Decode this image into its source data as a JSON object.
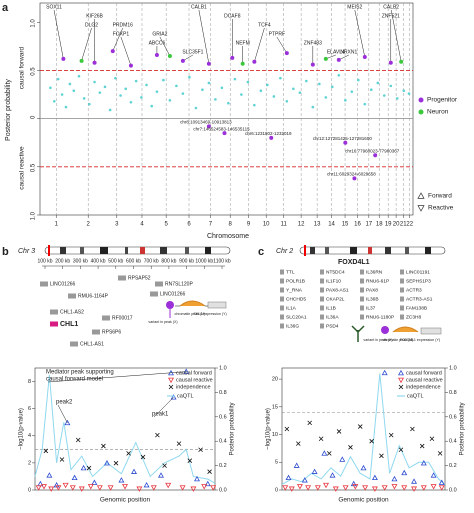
{
  "figure_a": {
    "panel_label": "a",
    "y_label": "Posterior probability",
    "forward_label": "causal forward",
    "reactive_label": "causal reactive",
    "x_label": "Chromosome",
    "xlim": [
      0,
      2871
    ],
    "ylim": [
      -1,
      1.2
    ],
    "yticks": [
      {
        "value": 1,
        "label": "1.0"
      },
      {
        "value": 0.5,
        "label": "0.5"
      },
      0,
      {
        "value": -0.5,
        "label": "0.5"
      },
      {
        "value": -1,
        "label": "1.0"
      }
    ],
    "xticks": [
      {
        "value": 125,
        "label": "1"
      },
      {
        "value": 371,
        "label": "2"
      },
      {
        "value": 591,
        "label": "3"
      },
      {
        "value": 785,
        "label": "4"
      },
      {
        "value": 971,
        "label": "5"
      },
      {
        "value": 1147,
        "label": "6"
      },
      {
        "value": 1312,
        "label": "7"
      },
      {
        "value": 1464,
        "label": "8"
      },
      {
        "value": 1605,
        "label": "9"
      },
      {
        "value": 1741,
        "label": "10"
      },
      {
        "value": 1876,
        "label": "11"
      },
      {
        "value": 2010,
        "label": "12"
      },
      {
        "value": 2133,
        "label": "13"
      },
      {
        "value": 2244,
        "label": "14"
      },
      {
        "value": 2348,
        "label": "15"
      },
      {
        "value": 2444,
        "label": "16"
      },
      {
        "value": 2531,
        "label": "17"
      },
      {
        "value": 2611,
        "label": "18"
      },
      {
        "value": 2680,
        "label": "19"
      },
      {
        "value": 2741,
        "label": "20"
      },
      {
        "value": 2796,
        "label": "21"
      },
      {
        "value": 2846,
        "label": "22"
      }
    ],
    "thresholds": [
      0.5,
      -0.5
    ],
    "threshold_color": "#d62728",
    "background_points": {
      "color": "#5fd3d3",
      "x": [
        80,
        110,
        140,
        170,
        200,
        230,
        260,
        300,
        340,
        380,
        420,
        460,
        500,
        540,
        580,
        620,
        660,
        700,
        740,
        780,
        820,
        860,
        900,
        950,
        1000,
        1050,
        1100,
        1150,
        1200,
        1250,
        1300,
        1350,
        1400,
        1450,
        1500,
        1550,
        1600,
        1650,
        1700,
        1750,
        1800,
        1850,
        1900,
        1950,
        2000,
        2050,
        2100,
        2150,
        2200,
        2250,
        2300,
        2350,
        2400,
        2450,
        2500,
        2550,
        2600,
        2650,
        2700,
        2750,
        2800,
        2840
      ],
      "y": [
        0.32,
        0.18,
        0.41,
        0.25,
        0.12,
        0.36,
        0.29,
        0.44,
        0.21,
        0.15,
        0.38,
        0.27,
        0.33,
        0.09,
        0.42,
        0.24,
        0.31,
        0.17,
        0.39,
        0.22,
        0.35,
        0.13,
        0.28,
        0.4,
        0.19,
        0.34,
        0.26,
        0.43,
        0.11,
        0.3,
        0.37,
        0.2,
        0.32,
        0.16,
        0.41,
        0.25,
        0.38,
        0.14,
        0.29,
        0.35,
        0.23,
        0.42,
        0.18,
        0.31,
        0.27,
        0.39,
        0.12,
        0.36,
        0.22,
        0.33,
        0.45,
        0.19,
        0.28,
        0.4,
        0.15,
        0.3,
        0.37,
        0.24,
        0.34,
        0.21,
        0.29,
        0.26
      ]
    },
    "series": [
      {
        "name": "Progenitor",
        "color": "#9b30d9",
        "x": [
          180,
          420,
          560,
          700,
          900,
          1100,
          1300,
          1480,
          1650,
          1900,
          2100,
          2300,
          2500,
          2700,
          1300,
          1420,
          1780,
          2350,
          2580,
          2420
        ],
        "y": [
          0.62,
          0.58,
          0.7,
          0.55,
          0.66,
          0.6,
          0.57,
          0.63,
          0.59,
          0.68,
          0.56,
          0.61,
          0.64,
          0.58,
          -0.08,
          -0.15,
          -0.2,
          -0.25,
          -0.38,
          -0.62
        ],
        "labels": [
          "SOX11",
          "KIF26B",
          "PRDM16",
          "FOXP1",
          "ABCC6",
          "SLC35F1",
          "CALB1",
          "DCAF8",
          "TCF4",
          "PTPRF",
          "ZNF483",
          "NRXN1",
          "MEIS2",
          "ZNF521",
          "chr8:10913469-10913813",
          "chr7:146524583-146535115",
          "chr6:1231802-1232019",
          "chr12:127281425-127281600",
          "chr16:77960023-77960367",
          "chr11:6029324-6029658"
        ]
      },
      {
        "name": "Neuron",
        "color": "#3cc83c",
        "x": [
          320,
          1000,
          1560,
          2200,
          2780
        ],
        "y": [
          0.6,
          0.65,
          0.57,
          0.62,
          0.59
        ],
        "labels": [
          "DLG2",
          "GRIA2",
          "NEFM",
          "ELAVL4",
          "CALB2"
        ]
      }
    ],
    "direction_legend": [
      "Forward",
      "Reactive"
    ]
  },
  "figure_b": {
    "panel_label": "b",
    "chromosome": "Chr 3",
    "scale_labels": [
      "100 kb",
      "200 kb",
      "300 kb",
      "400 kb",
      "500 kb",
      "600 kb",
      "700 kb",
      "800 kb",
      "900 kb",
      "1000 kb",
      "1100 kb"
    ],
    "genes": [
      "LINC01266",
      "RMU6-1164P",
      "RPSAP52",
      "RN7SL120P",
      "LINC01266",
      "CHL1-AS2",
      "RF00017",
      "CHL1",
      "RPS6P6",
      "CHL1-AS1"
    ],
    "target_gene": "CHL1",
    "schematic": [
      "variant in peak (X)",
      "chromatin peak (M)",
      "CHL1 expression (Y)"
    ],
    "plot": {
      "y_label": "−log10(p-value)",
      "y2_label": "Posterior probability",
      "x_label": "Genomic position",
      "xlim": [
        0,
        100
      ],
      "ylim": [
        0,
        9
      ],
      "yticks": [
        0,
        2,
        4,
        6,
        8
      ],
      "y2lim": [
        0,
        1
      ],
      "y2ticks": [
        {
          "value": 0,
          "label": "0.0"
        },
        0.2,
        0.4,
        0.6,
        0.8,
        {
          "value": 1,
          "label": "1.0"
        }
      ],
      "threshold": 3,
      "series": [
        {
          "name": "causal forward",
          "color": "#2b4bd1",
          "marker": "triangle-up",
          "axis": "y2",
          "x": [
            3,
            8,
            12,
            18,
            22,
            27,
            33,
            40,
            48,
            55,
            62,
            70,
            77,
            84,
            90,
            96
          ],
          "y": [
            0.05,
            0.12,
            0.04,
            0.55,
            0.1,
            0.18,
            0.06,
            0.22,
            0.08,
            0.15,
            0.04,
            0.12,
            0.76,
            0.97,
            0.09,
            0.05
          ]
        },
        {
          "name": "causal reactive",
          "color": "#e8333b",
          "marker": "triangle-down",
          "axis": "y2",
          "x": [
            2,
            5,
            9,
            13,
            17,
            21,
            26,
            31,
            36,
            42,
            50,
            58,
            66,
            74,
            82,
            88,
            94,
            99
          ],
          "y": [
            0.02,
            0.03,
            0.01,
            0.02,
            0.04,
            0.02,
            0.01,
            0.03,
            0.02,
            0.02,
            0.03,
            0.01,
            0.02,
            0.04,
            0.02,
            0.01,
            0.03,
            0.02
          ]
        },
        {
          "name": "independence",
          "color": "#111111",
          "marker": "x",
          "axis": "y2",
          "x": [
            6,
            15,
            24,
            30,
            38,
            45,
            52,
            60,
            68,
            72,
            80,
            86,
            92,
            97
          ],
          "y": [
            0.32,
            0.25,
            0.41,
            0.18,
            0.36,
            0.22,
            0.3,
            0.27,
            0.45,
            0.2,
            0.38,
            0.24,
            0.33,
            0.15
          ]
        }
      ],
      "caqtl": {
        "name": "caQTL",
        "color": "#8fd8ef",
        "x": [
          0,
          4,
          8,
          12,
          16,
          20,
          26,
          32,
          40,
          48,
          56,
          64,
          72,
          80,
          84,
          88,
          96,
          100
        ],
        "y": [
          1,
          3,
          8.5,
          2,
          5,
          1.5,
          2.5,
          1,
          2,
          1.2,
          3.5,
          1,
          2,
          2.5,
          3,
          1,
          0.8,
          0.5
        ]
      },
      "annotations": [
        [
          "Mediator peak supporting",
          "causal forward model"
        ],
        [
          "peak2"
        ],
        [
          "peak1"
        ]
      ]
    }
  },
  "figure_c": {
    "panel_label": "c",
    "chromosome": "Chr 2",
    "genes": [
      "TTL",
      "NT5DC4",
      "IL36RN",
      "LINC01191",
      "POLR1B",
      "IL1F10",
      "RNU6-61P",
      "SEPHS1P3",
      "Y_RNA",
      "PAX8-AS1",
      "PAX8",
      "ACTR3",
      "CHCHD5",
      "CKAP2L",
      "IL36B",
      "ACTR3-AS1",
      "IL1A",
      "IL1B",
      "IL37",
      "FAM138B",
      "SLC20A1",
      "IL36A",
      "RNU6-1180P",
      "ZC3H8",
      "IL36G",
      "PSD4"
    ],
    "target_gene": "FOXD4L1",
    "schematic": [
      "variant in peak (X)",
      "chromatin peak (M)",
      "FOXD4L1 expression (Y)"
    ],
    "plot": {
      "y_label": "−log10(p-value)",
      "y2_label": "Posterior probability",
      "x_label": "Genomic position",
      "xlim": [
        0,
        100
      ],
      "ylim": [
        0,
        22
      ],
      "yticks": [
        0,
        5,
        10,
        15,
        20
      ],
      "y2lim": [
        0,
        1
      ],
      "y2ticks": [
        {
          "value": 0,
          "label": "0.0"
        },
        0.2,
        0.4,
        0.6,
        0.8,
        {
          "value": 1,
          "label": "1.0"
        }
      ],
      "threshold": 14,
      "series": [
        {
          "name": "causal forward",
          "color": "#2b4bd1",
          "marker": "triangle-up",
          "axis": "y2",
          "x": [
            4,
            9,
            14,
            20,
            26,
            31,
            37,
            44,
            50,
            57,
            63,
            69,
            75,
            81,
            87,
            93,
            98
          ],
          "y": [
            0.1,
            0.2,
            0.08,
            0.15,
            0.3,
            0.12,
            0.25,
            0.05,
            0.18,
            0.1,
            0.96,
            0.09,
            0.14,
            0.07,
            0.22,
            0.12,
            0.06
          ]
        },
        {
          "name": "causal reactive",
          "color": "#e8333b",
          "marker": "triangle-down",
          "axis": "y2",
          "x": [
            2,
            6,
            11,
            16,
            22,
            27,
            33,
            39,
            45,
            51,
            57,
            63,
            69,
            75,
            81,
            87,
            93,
            98
          ],
          "y": [
            0.02,
            0.01,
            0.03,
            0.02,
            0.02,
            0.04,
            0.01,
            0.02,
            0.03,
            0.02,
            0.01,
            0.02,
            0.03,
            0.02,
            0.01,
            0.02,
            0.03,
            0.02
          ]
        },
        {
          "name": "independence",
          "color": "#111111",
          "marker": "x",
          "axis": "y2",
          "x": [
            3,
            10,
            17,
            24,
            29,
            35,
            42,
            48,
            55,
            61,
            67,
            73,
            80,
            86,
            92,
            97
          ],
          "y": [
            0.5,
            0.38,
            0.55,
            0.42,
            0.3,
            0.48,
            0.35,
            0.52,
            0.4,
            0.28,
            0.45,
            0.33,
            0.5,
            0.36,
            0.42,
            0.3
          ]
        }
      ],
      "caqtl": {
        "name": "caQTL",
        "color": "#8fd8ef",
        "x": [
          0,
          6,
          12,
          18,
          24,
          30,
          36,
          42,
          48,
          54,
          60,
          66,
          72,
          78,
          84,
          90,
          96,
          100
        ],
        "y": [
          1,
          2,
          1.5,
          3,
          2,
          4,
          2.5,
          6,
          3,
          2,
          21,
          3,
          8,
          4,
          5,
          5,
          2,
          1
        ]
      }
    }
  }
}
